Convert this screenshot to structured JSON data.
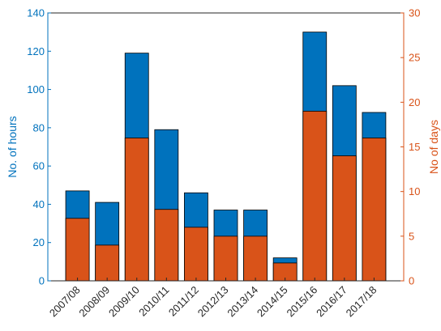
{
  "chart_data": {
    "type": "bar",
    "categories": [
      "2007/08",
      "2008/09",
      "2009/10",
      "2010/11",
      "2011/12",
      "2012/13",
      "2013/14",
      "2014/15",
      "2015/16",
      "2016/17",
      "2017/18"
    ],
    "series": [
      {
        "name": "No. of hours",
        "axis": "left",
        "color": "#0072BD",
        "values": [
          47,
          41,
          119,
          79,
          46,
          37,
          37,
          12,
          130,
          102,
          88
        ]
      },
      {
        "name": "No of days",
        "axis": "right",
        "color": "#D95319",
        "values": [
          7,
          4,
          16,
          8,
          6,
          5,
          5,
          2,
          19,
          14,
          16
        ]
      }
    ],
    "ylabel_left": "No. of hours",
    "ylabel_right": "No of days",
    "ylim_left": [
      0,
      140
    ],
    "ylim_right": [
      0,
      30
    ],
    "yticks_left": [
      "0",
      "20",
      "40",
      "60",
      "80",
      "100",
      "120",
      "140"
    ],
    "yticks_right": [
      "0",
      "5",
      "10",
      "15",
      "20",
      "25",
      "30"
    ],
    "grid": false,
    "legend": "none"
  }
}
